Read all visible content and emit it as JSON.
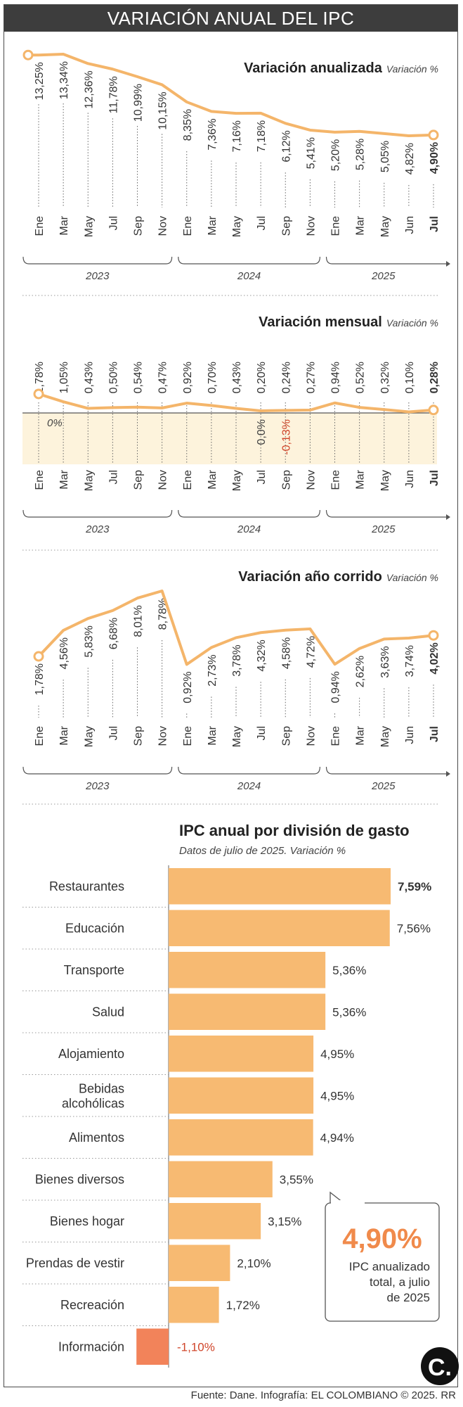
{
  "header": {
    "title": "VARIACIÓN ANUAL DEL IPC"
  },
  "colors": {
    "line": "#f4b56a",
    "bar": "#f7ba72",
    "negative_bar": "#f2835a",
    "negative_text": "#d0452a",
    "accent": "#f08a4b",
    "shade": "#fdf3dc",
    "header_bg": "#3d3d3d"
  },
  "months": [
    "Ene",
    "Mar",
    "May",
    "Jul",
    "Sep",
    "Nov",
    "Ene",
    "Mar",
    "May",
    "Jul",
    "Sep",
    "Nov",
    "Ene",
    "Mar",
    "May",
    "Jun",
    "Jul"
  ],
  "years": [
    "2023",
    "2024",
    "2025"
  ],
  "chart_data": [
    {
      "type": "line",
      "title": "Variación anualizada",
      "subtitle": "Variación %",
      "x": [
        "Ene",
        "Mar",
        "May",
        "Jul",
        "Sep",
        "Nov",
        "Ene",
        "Mar",
        "May",
        "Jul",
        "Sep",
        "Nov",
        "Ene",
        "Mar",
        "May",
        "Jun",
        "Jul"
      ],
      "values": [
        13.25,
        13.34,
        12.36,
        11.78,
        10.99,
        10.15,
        8.35,
        7.36,
        7.16,
        7.18,
        6.12,
        5.41,
        5.2,
        5.28,
        5.05,
        4.82,
        4.9
      ],
      "labels": [
        "13,25%",
        "13,34%",
        "12,36%",
        "11,78%",
        "10,99%",
        "10,15%",
        "8,35%",
        "7,36%",
        "7,16%",
        "7,18%",
        "6,12%",
        "5,41%",
        "5,20%",
        "5,28%",
        "5,05%",
        "4,82%",
        "4,90%"
      ],
      "grid": false
    },
    {
      "type": "line",
      "title": "Variación mensual",
      "subtitle": "Variación %",
      "x": [
        "Ene",
        "Mar",
        "May",
        "Jul",
        "Sep",
        "Nov",
        "Ene",
        "Mar",
        "May",
        "Jul",
        "Sep",
        "Nov",
        "Ene",
        "Mar",
        "May",
        "Jun",
        "Jul"
      ],
      "values": [
        1.78,
        1.05,
        0.43,
        0.5,
        0.54,
        0.47,
        0.92,
        0.7,
        0.43,
        0.2,
        0.24,
        0.27,
        0.94,
        0.52,
        0.32,
        0.1,
        0.28
      ],
      "labels": [
        "1,78%",
        "1,05%",
        "0,43%",
        "0,50%",
        "0,54%",
        "0,47%",
        "0,92%",
        "0,70%",
        "0,43%",
        "0,20%",
        "0,24%",
        "0,27%",
        "0,94%",
        "0,52%",
        "0,32%",
        "0,10%",
        "0,28%"
      ],
      "annotations": [
        {
          "text": "0%",
          "at": "Ene 2023"
        },
        {
          "text": "0,0%",
          "at": "Jul 2024"
        },
        {
          "text": "-0,13%",
          "at": "Sep 2024"
        }
      ]
    },
    {
      "type": "line",
      "title": "Variación año corrido",
      "subtitle": "Variación %",
      "x": [
        "Ene",
        "Mar",
        "May",
        "Jul",
        "Sep",
        "Nov",
        "Ene",
        "Mar",
        "May",
        "Jul",
        "Sep",
        "Nov",
        "Ene",
        "Mar",
        "May",
        "Jun",
        "Jul"
      ],
      "values": [
        1.78,
        4.56,
        5.83,
        6.68,
        8.01,
        8.78,
        0.92,
        2.73,
        3.78,
        4.32,
        4.58,
        4.72,
        0.94,
        2.62,
        3.63,
        3.74,
        4.02
      ],
      "labels": [
        "1,78%",
        "4,56%",
        "5,83%",
        "6,68%",
        "8,01%",
        "8,78%",
        "0,92%",
        "2,73%",
        "3,78%",
        "4,32%",
        "4,58%",
        "4,72%",
        "0,94%",
        "2,62%",
        "3,63%",
        "3,74%",
        "4,02%"
      ]
    },
    {
      "type": "bar",
      "orientation": "horizontal",
      "title": "IPC anual por división de gasto",
      "subtitle": "Datos de julio de 2025. Variación %",
      "categories": [
        "Restaurantes",
        "Educación",
        "Transporte",
        "Salud",
        "Alojamiento",
        "Bebidas alcohólicas",
        "Alimentos",
        "Bienes diversos",
        "Bienes hogar",
        "Prendas de vestir",
        "Recreación",
        "Información"
      ],
      "values": [
        7.59,
        7.56,
        5.36,
        5.36,
        4.95,
        4.95,
        4.94,
        3.55,
        3.15,
        2.1,
        1.72,
        -1.1
      ],
      "labels": [
        "7,59%",
        "7,56%",
        "5,36%",
        "5,36%",
        "4,95%",
        "4,95%",
        "4,94%",
        "3,55%",
        "3,15%",
        "2,10%",
        "1,72%",
        "-1,10%"
      ]
    }
  ],
  "callout": {
    "value": "4,90%",
    "text_lines": [
      "IPC anualizado",
      "total, a julio",
      "de 2025"
    ]
  },
  "logo": {
    "letter": "C."
  },
  "footer": {
    "source": "Fuente: Dane. Infografía: EL COLOMBIANO © 2025. RR"
  }
}
